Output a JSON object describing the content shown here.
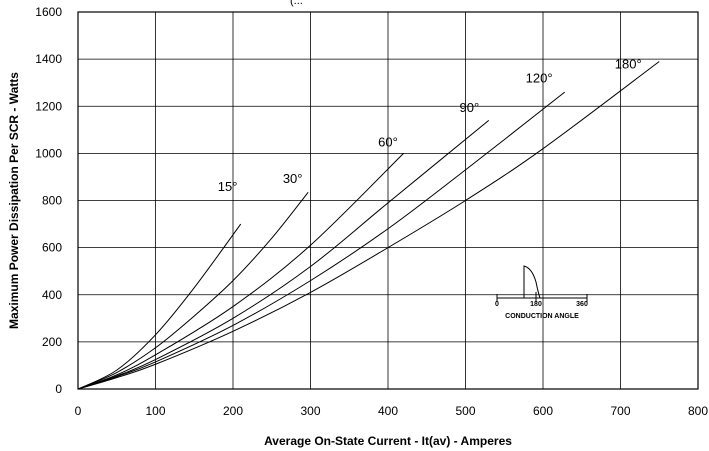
{
  "chart_data": {
    "type": "line",
    "title_fragment": "(...",
    "xlabel": "Average On-State Current - It(av) - Amperes",
    "ylabel": "Maximum Power Dissipation Per SCR - Watts",
    "xlim": [
      0,
      800
    ],
    "ylim": [
      0,
      1600
    ],
    "xticks": [
      0,
      100,
      200,
      300,
      400,
      500,
      600,
      700,
      800
    ],
    "yticks": [
      0,
      200,
      400,
      600,
      800,
      1000,
      1200,
      1400,
      1600
    ],
    "grid": true,
    "series": [
      {
        "name": "15°",
        "x": [
          0,
          50,
          100,
          150,
          210
        ],
        "y": [
          0,
          80,
          230,
          430,
          700
        ]
      },
      {
        "name": "30°",
        "x": [
          0,
          50,
          100,
          150,
          200,
          250,
          297
        ],
        "y": [
          0,
          70,
          175,
          310,
          460,
          640,
          835
        ]
      },
      {
        "name": "60°",
        "x": [
          0,
          50,
          100,
          200,
          300,
          420
        ],
        "y": [
          0,
          60,
          145,
          350,
          610,
          1000
        ]
      },
      {
        "name": "90°",
        "x": [
          0,
          50,
          100,
          200,
          300,
          400,
          530
        ],
        "y": [
          0,
          55,
          125,
          300,
          520,
          790,
          1140
        ]
      },
      {
        "name": "120°",
        "x": [
          0,
          50,
          100,
          200,
          300,
          400,
          500,
          628
        ],
        "y": [
          0,
          52,
          115,
          270,
          460,
          680,
          930,
          1260
        ]
      },
      {
        "name": "180°",
        "x": [
          0,
          50,
          100,
          200,
          300,
          400,
          500,
          600,
          750
        ],
        "y": [
          0,
          48,
          105,
          245,
          410,
          600,
          800,
          1020,
          1390
        ]
      }
    ],
    "annotations": [
      {
        "text": "15°",
        "x": 193,
        "y": 840
      },
      {
        "text": "30°",
        "x": 277,
        "y": 875
      },
      {
        "text": "60°",
        "x": 400,
        "y": 1030
      },
      {
        "text": "90°",
        "x": 505,
        "y": 1175
      },
      {
        "text": "120°",
        "x": 595,
        "y": 1300
      },
      {
        "text": "180°",
        "x": 710,
        "y": 1360
      }
    ],
    "inset": {
      "label": "CONDUCTION ANGLE",
      "tick_left": "0",
      "tick_mid": "180",
      "tick_right": "360"
    }
  }
}
